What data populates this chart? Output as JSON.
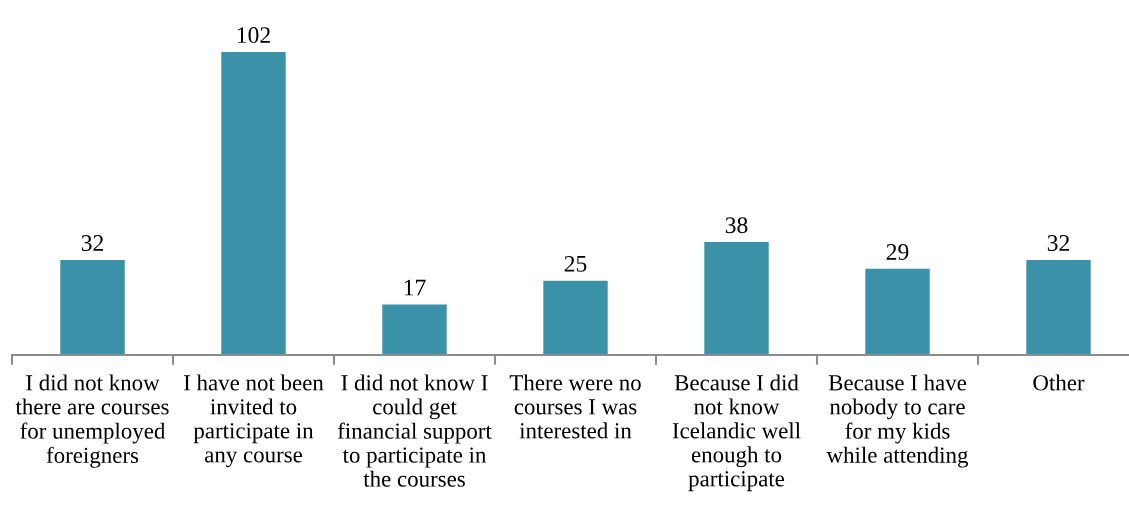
{
  "chart_data": {
    "type": "bar",
    "categories": [
      "I did not know\nthere are courses\nfor unemployed\nforeigners",
      "I have not been\ninvited to\nparticipate in\nany course",
      "I did not know I\ncould get\nfinancial support\nto participate in\nthe courses",
      "There were no\ncourses I was\ninterested in",
      "Because I did\nnot know\nIcelandic well\nenough to\nparticipate",
      "Because I have\nnobody to care\nfor my kids\nwhile attending",
      "Other"
    ],
    "values": [
      32,
      102,
      17,
      25,
      38,
      29,
      32
    ],
    "color": "#3b92a8",
    "data_labels": true
  }
}
